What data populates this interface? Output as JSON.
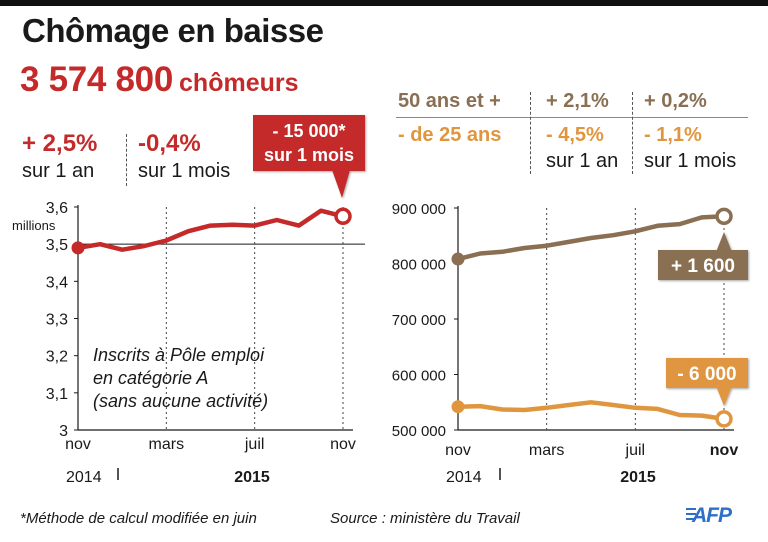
{
  "title": "Chômage en baisse",
  "headline": {
    "value": "3 574 800",
    "unit": "chômeurs"
  },
  "left_stats": [
    {
      "value": "+ 2,5%",
      "period": "sur 1 an"
    },
    {
      "value": "-0,4%",
      "period": "sur 1 mois"
    }
  ],
  "left_callout": {
    "line1": "- 15 000*",
    "line2": "sur 1 mois"
  },
  "left_annotation": [
    "Inscrits à Pôle emploi",
    "en catégorie A",
    "(sans aucune activité)"
  ],
  "right_table": {
    "rows": [
      {
        "label": "50 ans et +",
        "year": "+ 2,1%",
        "month": "+ 0,2%"
      },
      {
        "label": "- de 25 ans",
        "year": "- 4,5%",
        "month": "- 1,1%"
      }
    ],
    "periods": {
      "year": "sur 1 an",
      "month": "sur 1 mois"
    }
  },
  "right_callouts": {
    "older": "+ 1 600",
    "young": "- 6 000"
  },
  "colors": {
    "red": "#c42a2a",
    "brown": "#8a6f53",
    "orange": "#e0963f"
  },
  "year_labels": {
    "y2014": "2014",
    "y2015": "2015"
  },
  "chart_data": [
    {
      "type": "line",
      "x": [
        "2014-11",
        "2014-12",
        "2015-01",
        "2015-02",
        "2015-03",
        "2015-04",
        "2015-05",
        "2015-06",
        "2015-07",
        "2015-08",
        "2015-09",
        "2015-10",
        "2015-11"
      ],
      "xticks": [
        "nov",
        "mars",
        "juil",
        "nov"
      ],
      "series": [
        {
          "values": [
            3.49,
            3.5,
            3.485,
            3.495,
            3.51,
            3.535,
            3.55,
            3.552,
            3.55,
            3.565,
            3.55,
            3.59,
            3.575
          ]
        }
      ],
      "yticks": [
        "3,6",
        "3,5",
        "3,4",
        "3,3",
        "3,2",
        "3,1",
        "3"
      ],
      "ylabel": "millions",
      "ylim": [
        3,
        3.6
      ]
    },
    {
      "type": "line",
      "x": [
        "2014-11",
        "2014-12",
        "2015-01",
        "2015-02",
        "2015-03",
        "2015-04",
        "2015-05",
        "2015-06",
        "2015-07",
        "2015-08",
        "2015-09",
        "2015-10",
        "2015-11"
      ],
      "xticks": [
        "nov",
        "mars",
        "juil",
        "nov"
      ],
      "series": [
        {
          "values": [
            808000,
            818000,
            821000,
            828000,
            832000,
            839000,
            846000,
            851000,
            858000,
            868000,
            871000,
            883000,
            885000
          ]
        },
        {
          "values": [
            542000,
            543000,
            537000,
            536000,
            540000,
            545000,
            550000,
            545000,
            540000,
            538000,
            527000,
            526000,
            520000
          ]
        }
      ],
      "yticks": [
        "900 000",
        "800 000",
        "700 000",
        "600 000",
        "500 000"
      ],
      "ylim": [
        500000,
        900000
      ]
    }
  ],
  "footer": {
    "note": "*Méthode de calcul modifiée en juin",
    "source": "Source : ministère du Travail",
    "logo": "AFP"
  }
}
